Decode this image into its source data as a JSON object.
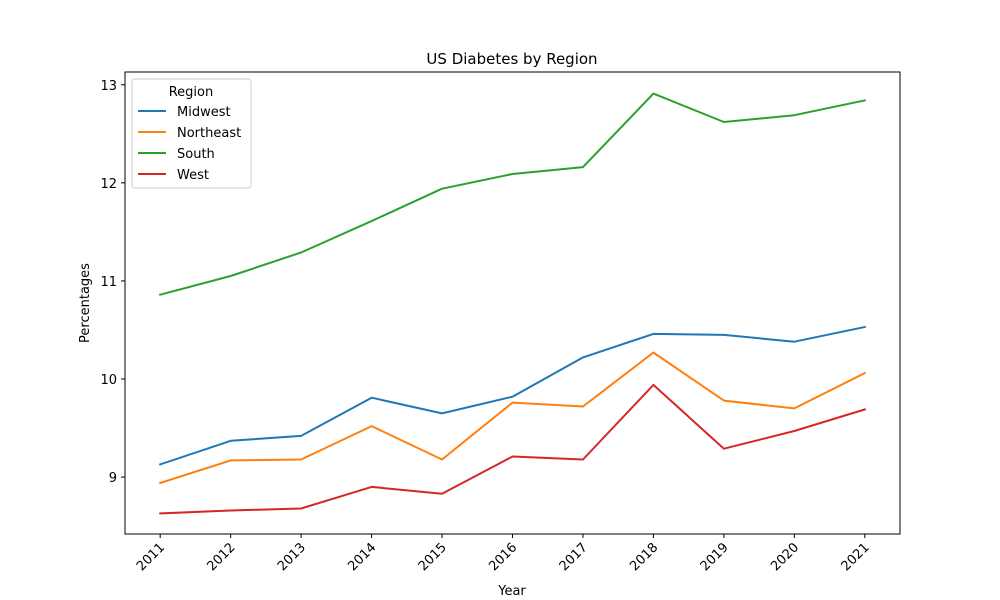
{
  "chart_data": {
    "type": "line",
    "title": "US Diabetes by Region",
    "xlabel": "Year",
    "ylabel": "Percentages",
    "x": [
      2011,
      2012,
      2013,
      2014,
      2015,
      2016,
      2017,
      2018,
      2019,
      2020,
      2021
    ],
    "x_tick_labels": [
      "2011",
      "2012",
      "2013",
      "2014",
      "2015",
      "2016",
      "2017",
      "2018",
      "2019",
      "2020",
      "2021"
    ],
    "y_ticks": [
      9,
      10,
      11,
      12,
      13
    ],
    "y_tick_labels": [
      "9",
      "10",
      "11",
      "12",
      "13"
    ],
    "ylim": [
      8.42,
      13.13
    ],
    "grid": false,
    "legend": {
      "title": "Region",
      "placement": "top-left"
    },
    "series": [
      {
        "name": "Midwest",
        "color": "#1f77b4",
        "values": [
          9.13,
          9.37,
          9.42,
          9.81,
          9.65,
          9.82,
          10.22,
          10.46,
          10.45,
          10.38,
          10.53
        ]
      },
      {
        "name": "Northeast",
        "color": "#ff7f0e",
        "values": [
          8.94,
          9.17,
          9.18,
          9.52,
          9.18,
          9.76,
          9.72,
          10.27,
          9.78,
          9.7,
          10.06
        ]
      },
      {
        "name": "South",
        "color": "#2ca02c",
        "values": [
          10.86,
          11.05,
          11.29,
          11.61,
          11.94,
          12.09,
          12.16,
          12.91,
          12.62,
          12.69,
          12.84
        ]
      },
      {
        "name": "West",
        "color": "#d62728",
        "values": [
          8.63,
          8.66,
          8.68,
          8.9,
          8.83,
          9.21,
          9.18,
          9.94,
          9.29,
          9.47,
          9.69
        ]
      }
    ]
  }
}
